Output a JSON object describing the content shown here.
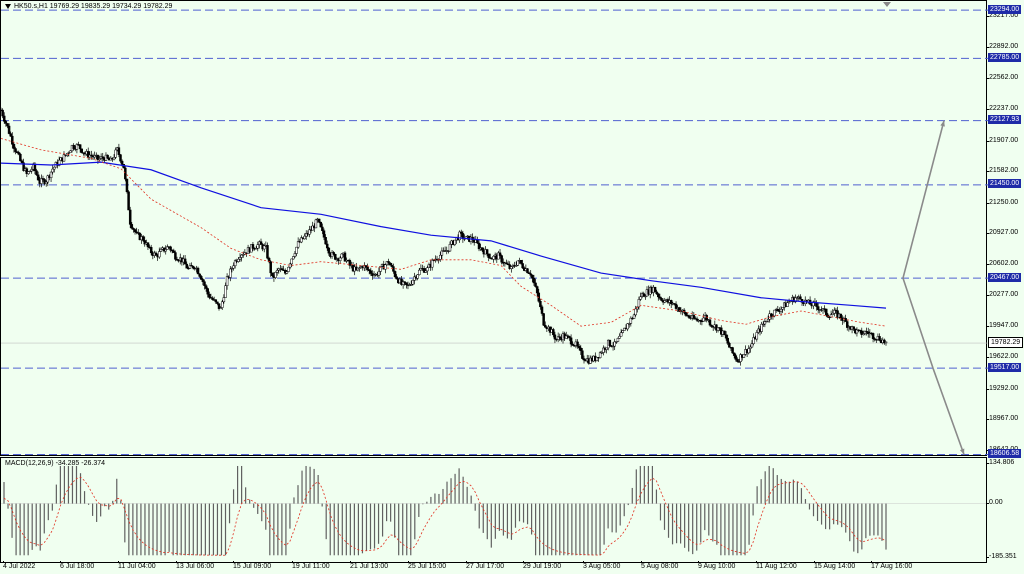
{
  "chart": {
    "legend_main": "HK50.s,H1  19769.29 19835.29 19734.29 19782.29",
    "legend_macd": "MACD(12,26,9) -34.285 -26.374",
    "price_ticks": [
      "23217.00",
      "22892.00",
      "22562.00",
      "22237.00",
      "21907.00",
      "21582.00",
      "21250.00",
      "20927.00",
      "20602.00",
      "20277.00",
      "19947.00",
      "19622.00",
      "19292.00",
      "18967.00",
      "18642.00"
    ],
    "level_labels": [
      "23294.00",
      "22785.00",
      "22127.93",
      "21450.00",
      "20467.00",
      "19517.00",
      "18606.58"
    ],
    "current_price": "19782.29",
    "macd_ticks": [
      "134.806",
      "0.00",
      "-185.351"
    ],
    "time_labels": [
      "4 Jul 2022",
      "6 Jul 18:00",
      "11 Jul 04:00",
      "13 Jul 06:00",
      "15 Jul 09:00",
      "19 Jul 11:00",
      "21 Jul 13:00",
      "25 Jul 15:00",
      "27 Jul 17:00",
      "29 Jul 19:00",
      "3 Aug 05:00",
      "5 Aug 08:00",
      "9 Aug 10:00",
      "11 Aug 12:00",
      "15 Aug 14:00",
      "17 Aug 16:00"
    ]
  },
  "colors": {
    "background": "#f0fff0",
    "level_line": "#5060d0",
    "level_label_bg": "#1f2ba8",
    "ma_long": "#1010e0",
    "ma_short": "#e03020",
    "candle": "#000000",
    "macd_hist": "#606060",
    "macd_signal": "#e03020",
    "arrow": "#8a8a8a"
  },
  "chart_data": {
    "type": "candlestick",
    "symbol": "HK50.s",
    "timeframe": "H1",
    "ohlc_last": {
      "open": 19769.29,
      "high": 19835.29,
      "low": 19734.29,
      "close": 19782.29
    },
    "levels": [
      23294.0,
      22785.0,
      22127.93,
      21450.0,
      20467.0,
      19517.0,
      18606.58
    ],
    "ylim": [
      18580,
      23390
    ],
    "macd": {
      "params": "12,26,9",
      "main": -34.285,
      "signal": -26.374,
      "ylim": [
        -185.351,
        134.806
      ]
    },
    "close_path": [
      22240,
      22060,
      21860,
      21700,
      21560,
      21640,
      21480,
      21500,
      21620,
      21700,
      21760,
      21860,
      21860,
      21780,
      21760,
      21720,
      21740,
      21700,
      21820,
      21640,
      21060,
      20920,
      20880,
      20760,
      20700,
      20760,
      20800,
      20700,
      20660,
      20560,
      20600,
      20480,
      20300,
      20220,
      20140,
      20450,
      20620,
      20720,
      20750,
      20800,
      20820,
      20780,
      20460,
      20560,
      20520,
      20680,
      20830,
      20900,
      20980,
      21070,
      20900,
      20720,
      20680,
      20700,
      20600,
      20540,
      20600,
      20540,
      20500,
      20580,
      20640,
      20500,
      20400,
      20380,
      20480,
      20560,
      20560,
      20660,
      20710,
      20760,
      20850,
      20920,
      20880,
      20880,
      20800,
      20740,
      20680,
      20700,
      20620,
      20560,
      20650,
      20580,
      20520,
      20300,
      20000,
      19920,
      19820,
      19860,
      19820,
      19760,
      19640,
      19600,
      19620,
      19700,
      19780,
      19760,
      19860,
      19980,
      20080,
      20280,
      20320,
      20360,
      20260,
      20220,
      20200,
      20140,
      20080,
      20040,
      20020,
      20060,
      19980,
      19940,
      19860,
      19700,
      19600,
      19680,
      19740,
      19880,
      19980,
      20080,
      20120,
      20160,
      20220,
      20260,
      20240,
      20200,
      20180,
      20140,
      20080,
      20100,
      20060,
      19980,
      19920,
      19880,
      19900,
      19860,
      19830,
      19782.29
    ],
    "ma_long": [
      [
        0,
        21680
      ],
      [
        50,
        21660
      ],
      [
        100,
        21690
      ],
      [
        150,
        21610
      ],
      [
        200,
        21420
      ],
      [
        260,
        21210
      ],
      [
        320,
        21140
      ],
      [
        380,
        21010
      ],
      [
        430,
        20920
      ],
      [
        490,
        20860
      ],
      [
        540,
        20700
      ],
      [
        600,
        20520
      ],
      [
        650,
        20440
      ],
      [
        700,
        20370
      ],
      [
        760,
        20260
      ],
      [
        800,
        20220
      ],
      [
        850,
        20180
      ],
      [
        885,
        20150
      ]
    ],
    "ma_short": [
      [
        0,
        21940
      ],
      [
        40,
        21820
      ],
      [
        90,
        21730
      ],
      [
        120,
        21620
      ],
      [
        150,
        21300
      ],
      [
        200,
        21000
      ],
      [
        230,
        20780
      ],
      [
        260,
        20660
      ],
      [
        290,
        20600
      ],
      [
        320,
        20640
      ],
      [
        360,
        20600
      ],
      [
        400,
        20560
      ],
      [
        430,
        20660
      ],
      [
        470,
        20660
      ],
      [
        500,
        20600
      ],
      [
        520,
        20380
      ],
      [
        550,
        20180
      ],
      [
        580,
        19960
      ],
      [
        610,
        20000
      ],
      [
        640,
        20180
      ],
      [
        680,
        20120
      ],
      [
        720,
        20020
      ],
      [
        745,
        19980
      ],
      [
        770,
        20060
      ],
      [
        800,
        20120
      ],
      [
        830,
        20060
      ],
      [
        860,
        20000
      ],
      [
        885,
        19960
      ]
    ],
    "projection": {
      "origin_price": 20467.0,
      "up_target": 22127.93,
      "down_targets": [
        19517.0,
        18606.58
      ]
    }
  }
}
